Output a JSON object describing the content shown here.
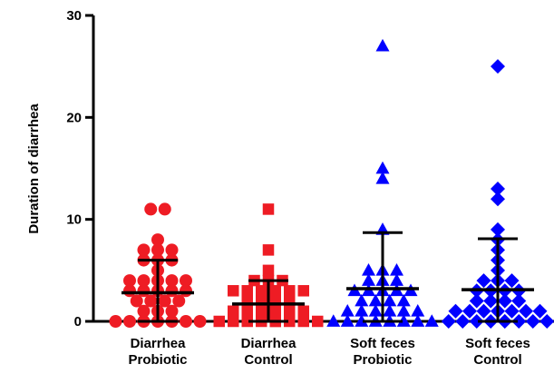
{
  "chart_data": {
    "type": "scatter",
    "title": "",
    "xlabel": "",
    "ylabel": "Duration of diarrhea",
    "ylim": [
      0,
      30
    ],
    "yticks": [
      0,
      10,
      20,
      30
    ],
    "ytick_labels": [
      "0",
      "10",
      "20",
      "30"
    ],
    "grid": false,
    "legend": "none",
    "categories": [
      {
        "line1": "Diarrhea",
        "line2": "Probiotic"
      },
      {
        "line1": "Diarrhea",
        "line2": "Control"
      },
      {
        "line1": "Soft feces",
        "line2": "Probiotic"
      },
      {
        "line1": "Soft feces",
        "line2": "Control"
      }
    ],
    "groups": [
      {
        "marker": "circle",
        "color": "#ee1c24",
        "mean": 2.8,
        "sd_low": 0.0,
        "sd_high": 6.0,
        "values": [
          11,
          11,
          8,
          7,
          7,
          7,
          6,
          6,
          6,
          5,
          4,
          4,
          4,
          4,
          4,
          3,
          3,
          3,
          3,
          3,
          2,
          2,
          2,
          2,
          1,
          1,
          1,
          0,
          0,
          0,
          0,
          0,
          0,
          0
        ]
      },
      {
        "marker": "square",
        "color": "#ee1c24",
        "mean": 1.7,
        "sd_low": 0.0,
        "sd_high": 4.0,
        "values": [
          11,
          7,
          5,
          4,
          4,
          4,
          3,
          3,
          3,
          3,
          3,
          3,
          2,
          2,
          2,
          2,
          1,
          1,
          1,
          1,
          1,
          1,
          0,
          0,
          0,
          0,
          0,
          0,
          0,
          0,
          0
        ]
      },
      {
        "marker": "triangle",
        "color": "#0000ff",
        "mean": 3.2,
        "sd_low": 0.0,
        "sd_high": 8.7,
        "values": [
          27,
          15,
          14,
          9,
          5,
          5,
          5,
          4,
          4,
          4,
          3,
          3,
          3,
          3,
          3,
          2,
          2,
          2,
          2,
          1,
          1,
          1,
          1,
          1,
          1,
          0,
          0,
          0,
          0,
          0,
          0,
          0,
          0
        ]
      },
      {
        "marker": "diamond",
        "color": "#0000ff",
        "mean": 3.1,
        "sd_low": 0.0,
        "sd_high": 8.1,
        "values": [
          25,
          13,
          12,
          9,
          8,
          7,
          6,
          5,
          4,
          4,
          4,
          3,
          3,
          3,
          3,
          2,
          2,
          2,
          2,
          1,
          1,
          1,
          1,
          1,
          1,
          1,
          0,
          0,
          0,
          0,
          0,
          0,
          0,
          0,
          0
        ]
      }
    ]
  }
}
